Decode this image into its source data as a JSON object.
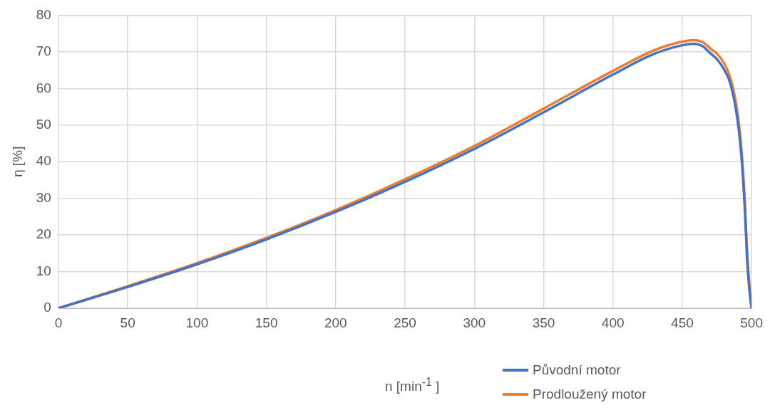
{
  "chart_data": {
    "type": "line",
    "xlabel": "n [min$^{-1}$ ]",
    "ylabel": "η [%]",
    "xlim": [
      0,
      500
    ],
    "xticks": [
      0,
      50,
      100,
      150,
      200,
      250,
      300,
      350,
      400,
      450,
      500
    ],
    "ylim": [
      0,
      80
    ],
    "yticks": [
      0,
      10,
      20,
      30,
      40,
      50,
      60,
      70,
      80
    ],
    "grid": true,
    "legend": "bottom right",
    "marker": "none",
    "line_style": "solid",
    "series": [
      {
        "name": "Původní motor",
        "color": "#4472c4",
        "x": [
          0,
          50,
          100,
          150,
          200,
          250,
          300,
          350,
          400,
          430,
          450,
          458,
          465,
          470,
          475,
          480,
          485,
          490,
          493,
          495,
          497,
          499,
          500
        ],
        "values": [
          0,
          5.8,
          12,
          18.8,
          26.3,
          34.5,
          43.5,
          53.5,
          63.8,
          69.5,
          71.8,
          72.2,
          71.5,
          69.7,
          68,
          65.3,
          61,
          51,
          40,
          28,
          12,
          3,
          0
        ]
      },
      {
        "name": "Prodloužený motor",
        "color": "#ed7d31",
        "x": [
          0,
          50,
          100,
          150,
          200,
          250,
          300,
          350,
          400,
          430,
          450,
          458,
          465,
          470,
          475,
          480,
          485,
          490,
          493,
          495,
          497,
          499,
          500
        ],
        "values": [
          0,
          6,
          12.3,
          19.2,
          26.8,
          35.2,
          44.3,
          54.5,
          64.8,
          70.5,
          72.8,
          73.2,
          72.6,
          71,
          69.5,
          67,
          62.5,
          53,
          42,
          30,
          14,
          4,
          0
        ]
      }
    ]
  }
}
